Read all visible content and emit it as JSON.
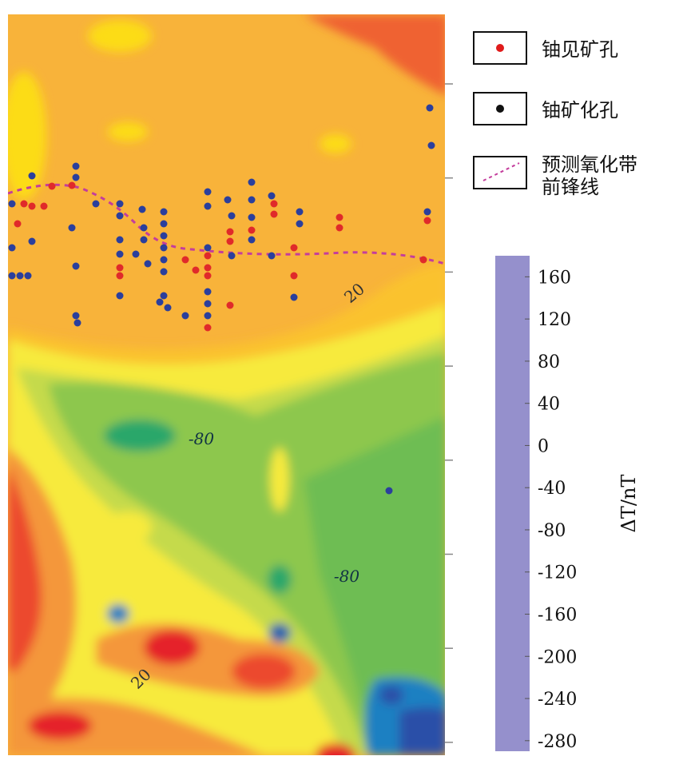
{
  "legend": {
    "items": [
      {
        "label": "铀见矿孔"
      },
      {
        "label": "铀矿化孔"
      },
      {
        "label": [
          "预测氧化带",
          "前锋线"
        ]
      }
    ]
  },
  "map": {
    "contour_labels": [
      "20",
      "-80",
      "-80",
      "20"
    ]
  },
  "colorbar": {
    "label": "ΔT/nT",
    "lim": [
      -290,
      180
    ],
    "ticks": [
      160,
      120,
      80,
      40,
      0,
      -40,
      -80,
      -120,
      -160,
      -200,
      -240,
      -280
    ],
    "colors": [
      "#e5222a",
      "#e9352a",
      "#ec4a2e",
      "#ef6230",
      "#f17d36",
      "#f4973b",
      "#f7ad3b",
      "#fac22f",
      "#fcdc18",
      "#f7ea3c",
      "#e0e34a",
      "#c5da4b",
      "#a7cf4b",
      "#8dc74d",
      "#6ebd52",
      "#2aa76b",
      "#1a80c2",
      "#1e60b0",
      "#2a4fa8",
      "#3855a9",
      "#4763ae",
      "#5e6fb7",
      "#7a80c0",
      "#9590cc"
    ]
  }
}
